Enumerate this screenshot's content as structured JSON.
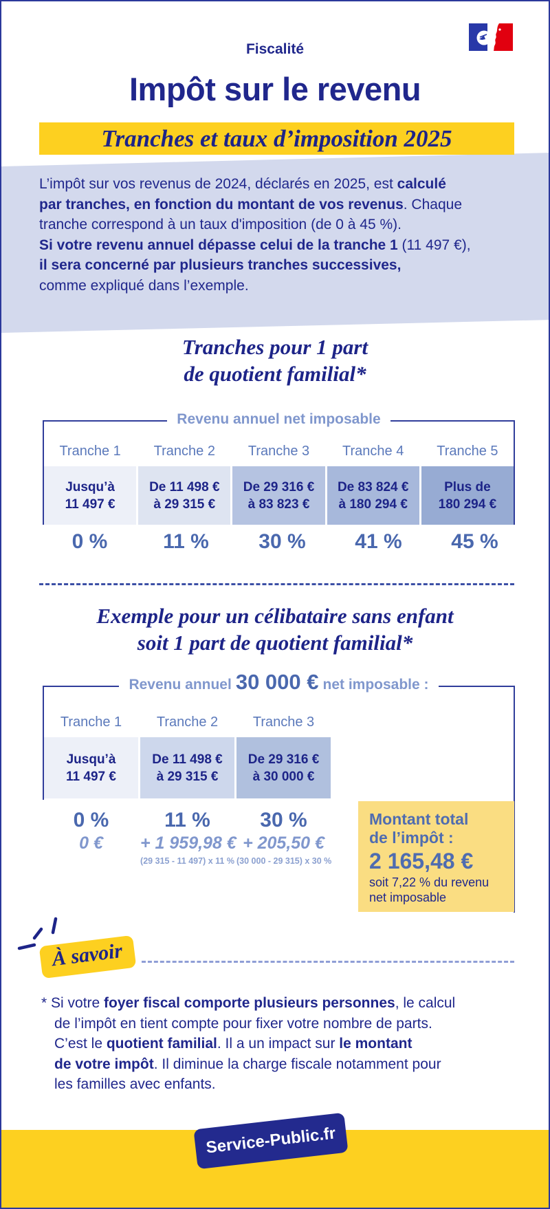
{
  "colors": {
    "navy_text": "#20278c",
    "heading_navy": "#1d2488",
    "slate_header": "#5b79bb",
    "slate_light": "#8097cd",
    "rate_blue": "#4a68ae",
    "total_blue": "#4f6cb0",
    "brand_yellow": "#fdd020",
    "soft_yellow": "#fadd82",
    "lavender": "#d3d9ed",
    "box_border": "#303d9b",
    "badge_navy": "#232a8e",
    "flag_blue": "#2838a8",
    "flag_red": "#e1000f"
  },
  "header": {
    "category": "Fiscalité",
    "title": "Impôt sur le revenu",
    "banner": "Tranches et taux d’imposition 2025",
    "logo": "marianne-france-flag-logo"
  },
  "intro": {
    "segments": [
      {
        "t": "L’impôt sur vos revenus de 2024, déclarés en 2025, est "
      },
      {
        "t": "calculé\npar tranches, en fonction du montant de vos revenus",
        "b": true
      },
      {
        "t": ". Chaque\ntranche correspond à un taux d'imposition (de 0 à 45 %).\n"
      },
      {
        "t": "Si votre revenu annuel dépasse celui de la tranche 1",
        "b": true
      },
      {
        "t": " (11 497 €),\n"
      },
      {
        "t": "il sera concerné par plusieurs tranches successives,",
        "b": true
      },
      {
        "t": "\ncomme expliqué dans l’exemple."
      }
    ]
  },
  "section1": {
    "heading_line1": "Tranches pour 1 part",
    "heading_line2": "de quotient familial*",
    "legend": "Revenu annuel net imposable",
    "columns": [
      {
        "header": "Tranche 1",
        "line1": "Jusqu’à",
        "line2": "11 497 €",
        "rate": "0 %",
        "bg": "#edf0f8"
      },
      {
        "header": "Tranche 2",
        "line1": "De 11 498 €",
        "line2": "à 29 315 €",
        "rate": "11 %",
        "bg": "#dee4f1"
      },
      {
        "header": "Tranche 3",
        "line1": "De 29 316 €",
        "line2": "à 83 823 €",
        "rate": "30 %",
        "bg": "#b5c3e1"
      },
      {
        "header": "Tranche 4",
        "line1": "De 83 824 €",
        "line2": "à 180 294 €",
        "rate": "41 %",
        "bg": "#a7b8db"
      },
      {
        "header": "Tranche 5",
        "line1": "Plus de",
        "line2": "180 294 €",
        "rate": "45 %",
        "bg": "#97abd3"
      }
    ]
  },
  "section2": {
    "heading_line1": "Exemple pour un célibataire sans enfant",
    "heading_line2": "soit 1 part de quotient familial*",
    "legend_prefix": "Revenu annuel",
    "legend_amount": "30 000 €",
    "legend_suffix": "net imposable :",
    "columns": [
      {
        "header": "Tranche 1",
        "line1": "Jusqu’à",
        "line2": "11 497 €",
        "rate": "0 %",
        "amount": "0 €",
        "formula": "",
        "bg": "#edf0f8"
      },
      {
        "header": "Tranche 2",
        "line1": "De 11 498 €",
        "line2": "à 29 315 €",
        "rate": "11 %",
        "amount": "+ 1 959,98 €",
        "formula": "(29 315 - 11 497) x 11 %",
        "bg": "#cdd7ec"
      },
      {
        "header": "Tranche 3",
        "line1": "De 29 316 €",
        "line2": "à 30 000 €",
        "rate": "30 %",
        "amount": "+ 205,50 €",
        "formula": "(30 000 - 29 315) x 30 %",
        "bg": "#b0c0de"
      }
    ],
    "total": {
      "label_line1": "Montant total",
      "label_line2": "de l’impôt :",
      "amount": "2 165,48 €",
      "note_line1": "soit 7,22 % du revenu",
      "note_line2": "net imposable"
    }
  },
  "note": {
    "badge": "À savoir",
    "segments": [
      {
        "t": "* Si votre "
      },
      {
        "t": "foyer fiscal comporte plusieurs personnes",
        "b": true
      },
      {
        "t": ", le calcul\nde l’impôt en tient compte pour fixer votre nombre de parts.\nC’est le "
      },
      {
        "t": "quotient familial",
        "b": true
      },
      {
        "t": ". Il a un impact sur "
      },
      {
        "t": "le montant\nde votre impôt",
        "b": true
      },
      {
        "t": ". Il diminue la charge fiscale notamment pour\nles familles avec enfants."
      }
    ]
  },
  "footer": {
    "brand": "Service-Public.fr"
  }
}
